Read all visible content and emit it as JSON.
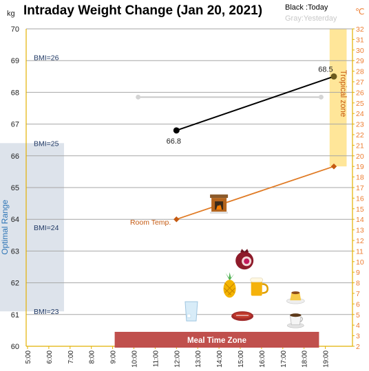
{
  "chart_data": {
    "type": "line",
    "title": "Intraday Weight Change (Jan 20, 2021)",
    "legend": {
      "today": "Black :Today",
      "yesterday": "Gray:Yesterday",
      "position": "top-right"
    },
    "y_left": {
      "unit_label": "kg",
      "min": 60,
      "max": 70,
      "step": 1,
      "grid": true
    },
    "y_right": {
      "unit_label": "℃",
      "min": 2,
      "max": 32,
      "step": 1
    },
    "x_axis": {
      "min_hour": 5,
      "max_hour": 20,
      "ticks": [
        "5:00",
        "6:00",
        "7:00",
        "8:00",
        "9:00",
        "10:00",
        "11:00",
        "12:00",
        "13:00",
        "14:00",
        "15:00",
        "16:00",
        "17:00",
        "18:00",
        "19:00"
      ]
    },
    "bmi_labels": [
      {
        "text": "BMI=26",
        "kg": 69.1
      },
      {
        "text": "BMI=25",
        "kg": 66.4
      },
      {
        "text": "BMI=24",
        "kg": 63.75
      },
      {
        "text": "BMI=23",
        "kg": 61.1
      }
    ],
    "zones": {
      "optimal_range": {
        "label": "Optimal Range",
        "kg_min": 61.1,
        "kg_max": 66.4,
        "color": "#dde3eb",
        "label_color": "#2e75b6"
      },
      "tropical_zone": {
        "label": "Tropical zone",
        "hour_min": 19.2,
        "hour_max": 20,
        "temp_min": 19,
        "temp_max": 32,
        "color": "#ffe699",
        "label_color": "#c55a11"
      },
      "meal_time_zone": {
        "label": "Meal Time Zone",
        "hour_min": 9,
        "hour_max": 18.8,
        "color": "#c0504d"
      }
    },
    "series": [
      {
        "name": "Today",
        "axis": "kg",
        "color": "#000000",
        "points": [
          {
            "hour": 12,
            "kg": 66.8,
            "label": "66.8"
          },
          {
            "hour": 19.4,
            "kg": 68.5,
            "label": "68.5"
          }
        ]
      },
      {
        "name": "Yesterday",
        "axis": "kg",
        "color": "#c8c8c8",
        "points": [
          {
            "hour": 10.2,
            "kg": 67.85
          },
          {
            "hour": 18.8,
            "kg": 67.85
          }
        ]
      },
      {
        "name": "Room Temp.",
        "axis": "temp",
        "color": "#e07b25",
        "points": [
          {
            "hour": 12,
            "temp": 14
          },
          {
            "hour": 19.4,
            "temp": 19
          }
        ],
        "label": "Room Temp."
      }
    ],
    "icons": [
      {
        "name": "fireplace-icon",
        "hour": 14,
        "kg": 64.5
      },
      {
        "name": "pomegranate-icon",
        "hour": 15.2,
        "kg": 62.7
      },
      {
        "name": "pineapple-icon",
        "hour": 14.5,
        "kg": 61.9
      },
      {
        "name": "beer-icon",
        "hour": 15.8,
        "kg": 61.85
      },
      {
        "name": "flan-icon",
        "hour": 17.6,
        "kg": 61.6
      },
      {
        "name": "water-glass-icon",
        "hour": 12.7,
        "kg": 61.1
      },
      {
        "name": "steak-icon",
        "hour": 15.1,
        "kg": 60.95
      },
      {
        "name": "coffee-cup-icon",
        "hour": 17.6,
        "kg": 60.85
      }
    ]
  }
}
